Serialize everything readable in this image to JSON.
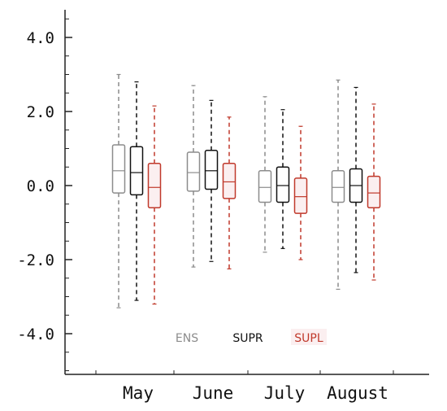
{
  "chart_data": {
    "type": "box",
    "title": "",
    "xlabel": "",
    "ylabel": "",
    "categories": [
      "May",
      "June",
      "July",
      "August"
    ],
    "ylim": [
      -5.3,
      4.8
    ],
    "yticks": [
      4.0,
      2.0,
      0.0,
      -2.0,
      -4.0
    ],
    "ytick_labels": [
      "4.0",
      "2.0",
      "0.0",
      "-2.0",
      "-4.0"
    ],
    "grid": false,
    "legend_position": "bottom-center",
    "series": [
      {
        "name": "ENS",
        "color": "#8c8c8c",
        "boxes": [
          {
            "min": -3.3,
            "q1": -0.2,
            "median": 0.4,
            "q3": 1.1,
            "max": 3.0
          },
          {
            "min": -2.2,
            "q1": -0.15,
            "median": 0.35,
            "q3": 0.9,
            "max": 2.7
          },
          {
            "min": -1.8,
            "q1": -0.45,
            "median": -0.05,
            "q3": 0.4,
            "max": 2.4
          },
          {
            "min": -2.8,
            "q1": -0.45,
            "median": -0.05,
            "q3": 0.4,
            "max": 2.85
          }
        ]
      },
      {
        "name": "SUPR",
        "color": "#111111",
        "boxes": [
          {
            "min": -3.1,
            "q1": -0.25,
            "median": 0.35,
            "q3": 1.05,
            "max": 2.8
          },
          {
            "min": -2.05,
            "q1": -0.1,
            "median": 0.4,
            "q3": 0.95,
            "max": 2.3
          },
          {
            "min": -1.7,
            "q1": -0.45,
            "median": 0.0,
            "q3": 0.5,
            "max": 2.05
          },
          {
            "min": -2.35,
            "q1": -0.45,
            "median": 0.0,
            "q3": 0.45,
            "max": 2.65
          }
        ]
      },
      {
        "name": "SUPL",
        "color": "#c0392b",
        "boxes": [
          {
            "min": -3.2,
            "q1": -0.6,
            "median": -0.05,
            "q3": 0.6,
            "max": 2.15
          },
          {
            "min": -2.25,
            "q1": -0.35,
            "median": 0.1,
            "q3": 0.6,
            "max": 1.85
          },
          {
            "min": -2.0,
            "q1": -0.75,
            "median": -0.3,
            "q3": 0.2,
            "max": 1.6
          },
          {
            "min": -2.55,
            "q1": -0.6,
            "median": -0.2,
            "q3": 0.25,
            "max": 2.2
          }
        ]
      }
    ]
  }
}
